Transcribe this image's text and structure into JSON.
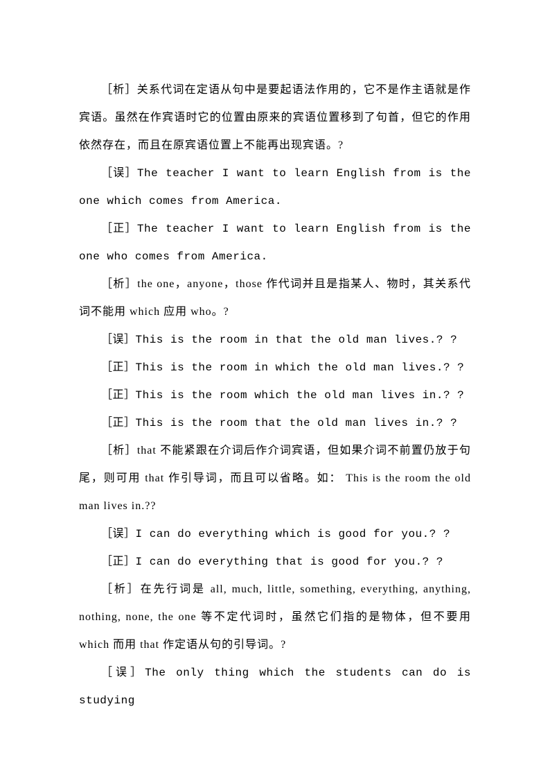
{
  "lines": [
    "［析］关系代词在定语从句中是要起语法作用的，它不是作主语就是作宾语。虽然在作宾语时它的位置由原来的宾语位置移到了句首，但它的作用依然存在，而且在原宾语位置上不能再出现宾语。?",
    "［误］The teacher I want to learn English from is the one which comes from America.",
    "［正］The teacher I want to learn English from is the one who comes from America.",
    "［析］the one，anyone，those 作代词并且是指某人、物时，其关系代词不能用 which 应用 who。?",
    "［误］This is the room in that the old man lives.? ?",
    "［正］This is the room in which the old man lives.? ?",
    "［正］This is the room which the old man lives in.? ?",
    "［正］This is the room that the old man lives in.? ?",
    "［析］that 不能紧跟在介词后作介词宾语，但如果介词不前置仍放于句尾，则可用 that 作引导词，而且可以省略。如： This is the room the old man lives in.??",
    "［误］I can do everything which is good for you.? ?",
    "［正］I can do everything that is good for you.? ?",
    "［析］在先行词是 all, much, little, something, everything, anything, nothing, none, the one 等不定代词时，虽然它们指的是物体，但不要用 which 而用 that 作定语从句的引导词。?",
    "［误］The only thing which the students can do is studying"
  ]
}
